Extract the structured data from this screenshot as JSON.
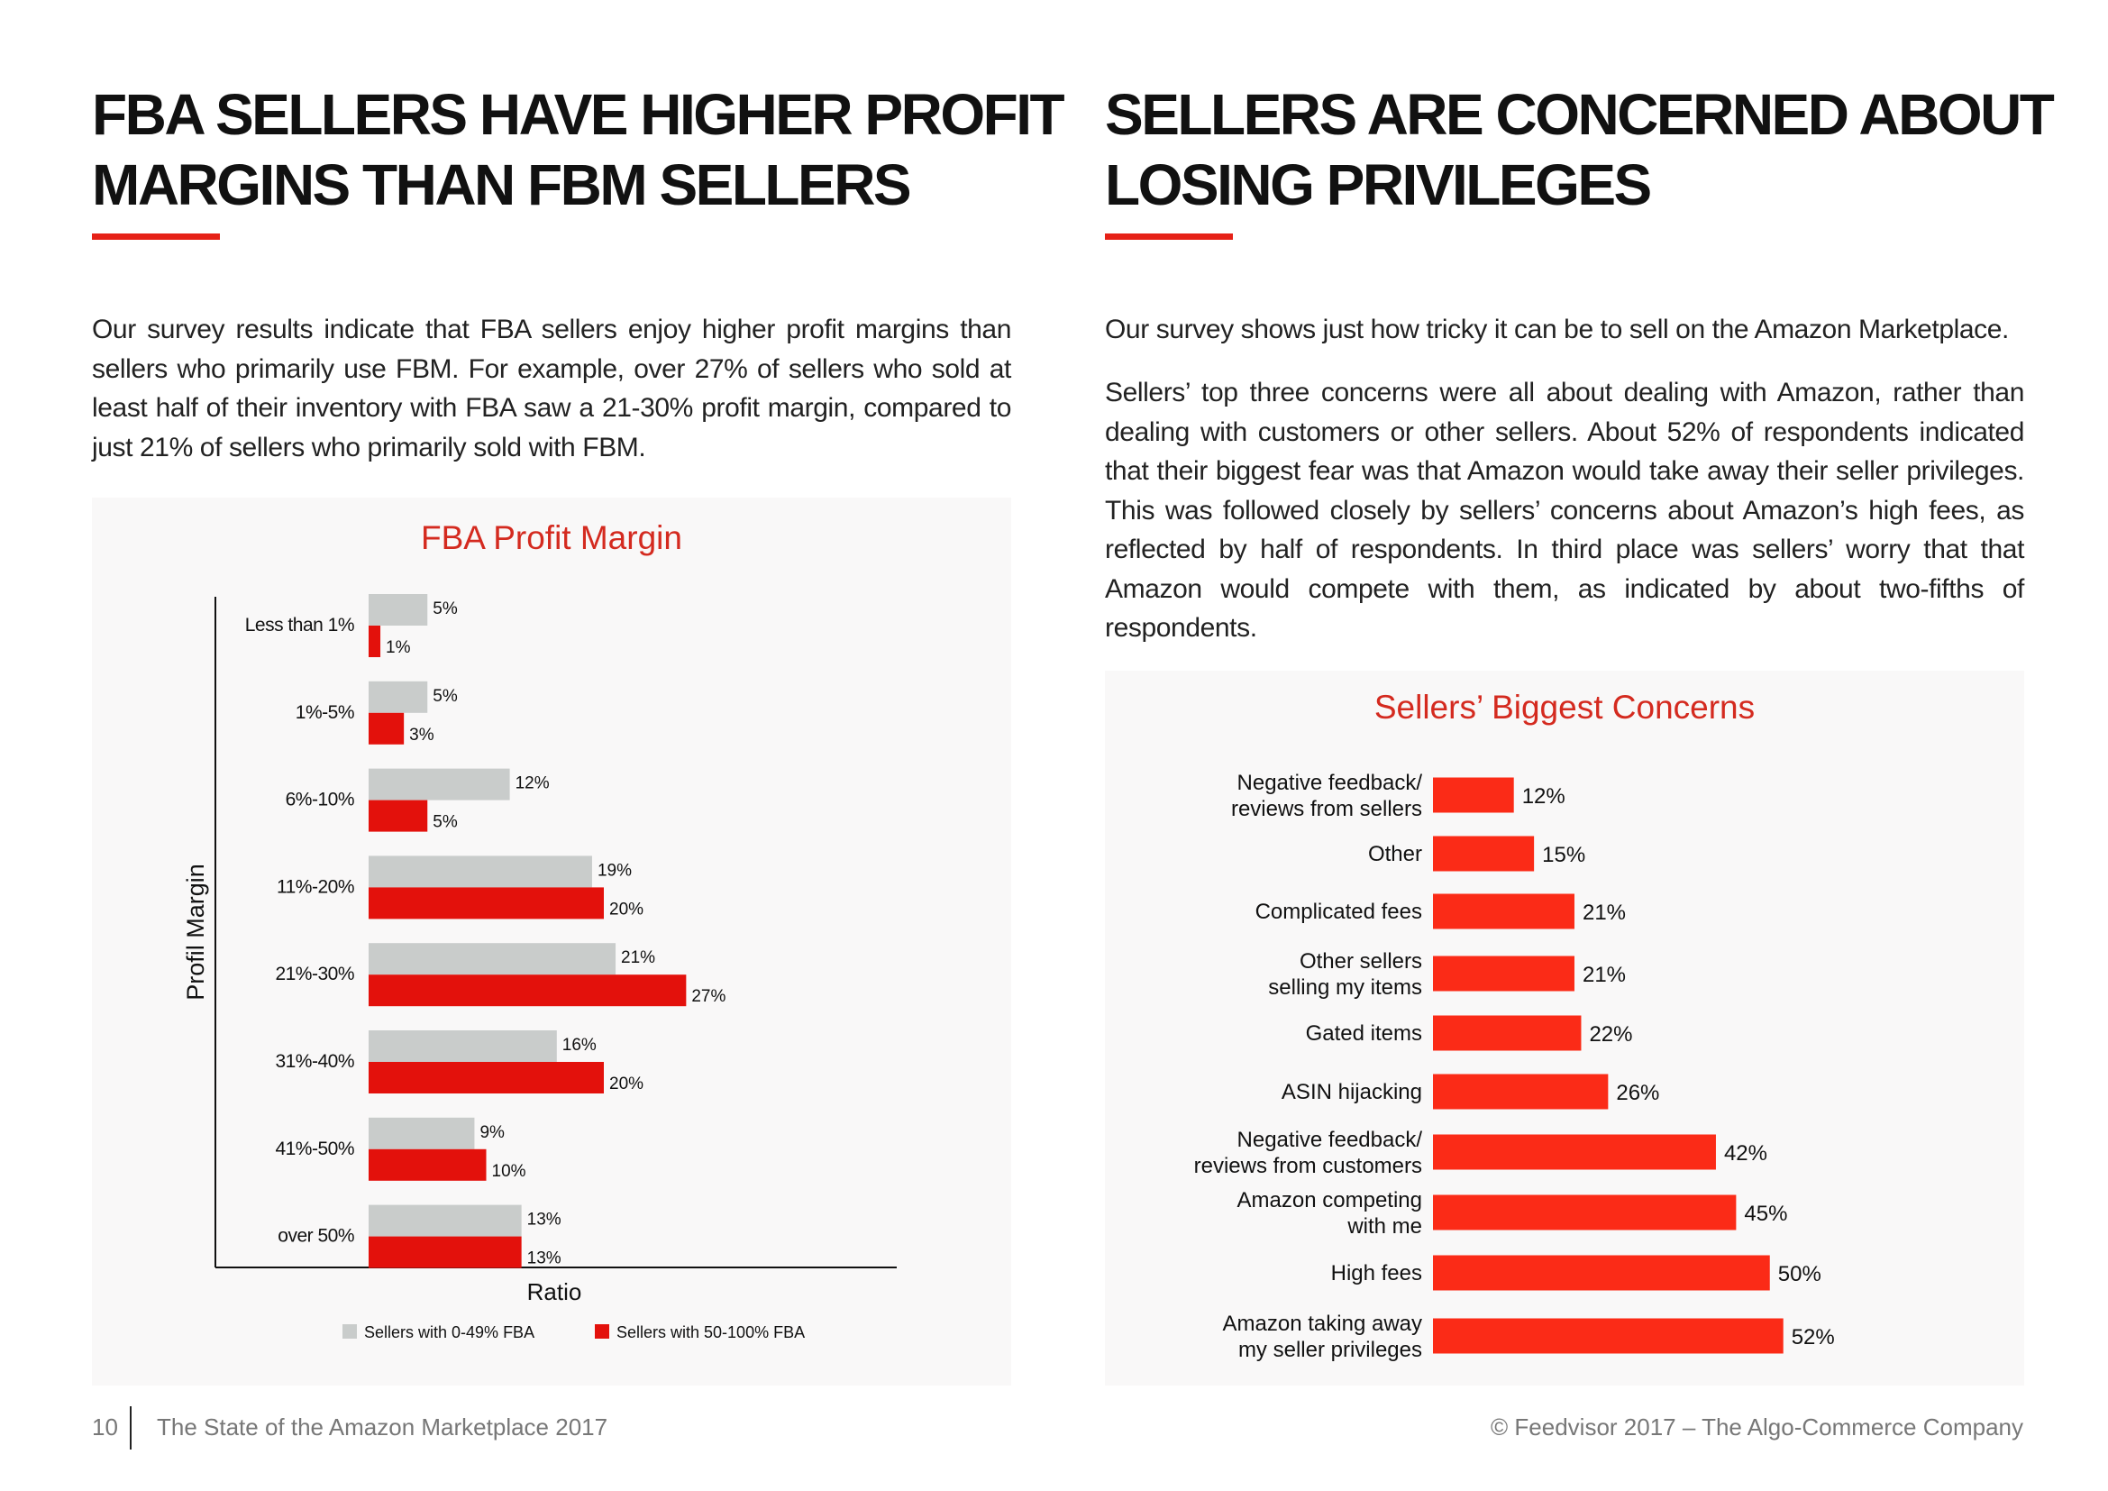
{
  "colors": {
    "accent": "#e62117",
    "bar_light": "#c9cccb",
    "bar_dark": "#e3110c",
    "concern_bar": "#fb2b17"
  },
  "left": {
    "title_lines": [
      "FBA SELLERS HAVE HIGHER PROFIT",
      "MARGINS THAN FBM SELLERS"
    ],
    "body": "Our survey results indicate that FBA sellers enjoy higher profit margins than sellers who primarily use FBM. For example, over 27% of sellers who sold at least half of their inventory with FBA saw a 21-30% profit margin, compared to just 21% of sellers who primarily sold with FBM."
  },
  "right": {
    "title_lines": [
      "SELLERS ARE CONCERNED ABOUT",
      "LOSING PRIVILEGES"
    ],
    "body1": "Our survey shows just how tricky it can be to sell on the Amazon Marketplace.",
    "body2": "Sellers’ top three concerns were all about dealing with Amazon, rather than dealing with customers or other sellers. About 52% of respondents indicated that their biggest fear was that Amazon would take away their seller privileges. This was followed closely by sellers’ concerns about Amazon’s high fees, as reflected by half of respondents. In third place was sellers’ worry that that Amazon would compete with them, as indicated by about two-fifths of respondents."
  },
  "chart_data": [
    {
      "type": "bar",
      "orientation": "horizontal",
      "title": "FBA Profit Margin",
      "xlabel": "Ratio",
      "ylabel": "Profil Margin",
      "categories": [
        "Less than 1%",
        "1%-5%",
        "6%-10%",
        "11%-20%",
        "21%-30%",
        "31%-40%",
        "41%-50%",
        "over 50%"
      ],
      "series": [
        {
          "name": "Sellers with 0-49% FBA",
          "values": [
            5,
            5,
            12,
            19,
            21,
            16,
            9,
            13
          ],
          "color": "#c9cccb"
        },
        {
          "name": "Sellers with 50-100% FBA",
          "values": [
            1,
            3,
            5,
            20,
            27,
            20,
            10,
            13
          ],
          "color": "#e3110c"
        }
      ],
      "value_suffix": "%",
      "legend": "bottom",
      "xlim": [
        0,
        30
      ]
    },
    {
      "type": "bar",
      "orientation": "horizontal",
      "title": "Sellers’ Biggest Concerns",
      "categories": [
        [
          "Negative feedback/",
          "reviews from sellers"
        ],
        [
          "Other"
        ],
        [
          "Complicated fees"
        ],
        [
          "Other sellers",
          "selling my items"
        ],
        [
          "Gated items"
        ],
        [
          "ASIN hijacking"
        ],
        [
          "Negative feedback/",
          "reviews from customers"
        ],
        [
          "Amazon competing",
          "with me"
        ],
        [
          "High fees"
        ],
        [
          "Amazon taking away",
          "my seller privileges"
        ]
      ],
      "values": [
        12,
        15,
        21,
        21,
        22,
        26,
        42,
        45,
        50,
        52
      ],
      "value_suffix": "%",
      "color": "#fb2b17",
      "xlim": [
        0,
        60
      ]
    }
  ],
  "footer": {
    "page_number": "10",
    "doc_title": "The State of the Amazon Marketplace 2017",
    "copyright": "© Feedvisor 2017 – The Algo-Commerce Company"
  }
}
